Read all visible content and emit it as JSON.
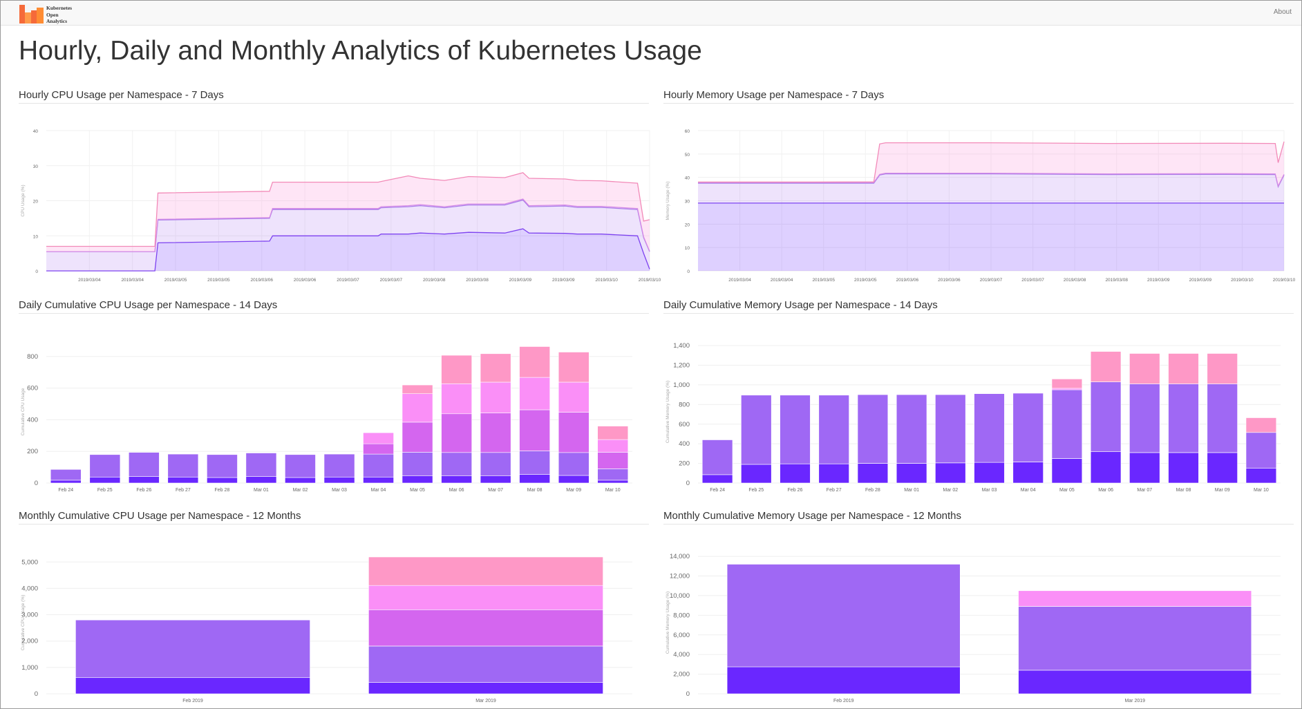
{
  "brand": {
    "line1": "Kubernetes",
    "line2": "Open",
    "line3": "Analytics"
  },
  "nav": {
    "about": "About"
  },
  "page_title": "Hourly, Daily and Monthly Analytics of Kubernetes Usage",
  "palette": [
    "#6a27ff",
    "#9f68f4",
    "#d466ef",
    "#fa8ff7",
    "#fe98c6"
  ],
  "panels": {
    "hourly_cpu": "Hourly CPU Usage per Namespace - 7 Days",
    "hourly_mem": "Hourly Memory Usage per Namespace - 7 Days",
    "daily_cpu": "Daily Cumulative CPU Usage per Namespace - 14 Days",
    "daily_mem": "Daily Cumulative Memory Usage per Namespace - 14 Days",
    "monthly_cpu": "Monthly Cumulative CPU Usage per Namespace - 12 Months",
    "monthly_mem": "Monthly Cumulative Memory Usage per Namespace - 12 Months"
  },
  "chart_data": [
    {
      "id": "hourly_cpu",
      "type": "area",
      "stacked": true,
      "ylabel": "CPU Usage (%)",
      "ylim": [
        0,
        40
      ],
      "yticks": [
        "0",
        "10",
        "20",
        "30",
        "40"
      ],
      "xticks": [
        "2019/03/04",
        "2019/03/04",
        "2019/03/05",
        "2019/03/05",
        "2019/03/06",
        "2019/03/06",
        "2019/03/07",
        "2019/03/07",
        "2019/03/08",
        "2019/03/08",
        "2019/03/09",
        "2019/03/09",
        "2019/03/10",
        "2019/03/10"
      ],
      "x": [
        0,
        0.18,
        0.185,
        0.37,
        0.375,
        0.55,
        0.555,
        0.6,
        0.62,
        0.66,
        0.7,
        0.76,
        0.79,
        0.8,
        0.86,
        0.88,
        0.92,
        0.98,
        0.99,
        1.0
      ],
      "series": [
        {
          "values": [
            0,
            0,
            8,
            8.5,
            10,
            10,
            10.5,
            10.5,
            10.8,
            10.5,
            11,
            10.8,
            12,
            10.8,
            10.7,
            10.5,
            10.5,
            10,
            5,
            0.5
          ]
        },
        {
          "values": [
            5.5,
            5.5,
            6.5,
            6.5,
            7.5,
            7.5,
            7.5,
            7.8,
            7.8,
            7.5,
            7.8,
            8,
            8.2,
            7.5,
            7.8,
            7.6,
            7.6,
            7.5,
            4.5,
            5
          ]
        },
        {
          "values": [
            0,
            0,
            0.2,
            0.2,
            0.3,
            0.3,
            0.3,
            0.3,
            0.3,
            0.3,
            0.3,
            0.3,
            0.3,
            0.3,
            0.3,
            0.3,
            0.3,
            0.3,
            0.2,
            0.1
          ]
        },
        {
          "values": [
            1.5,
            1.5,
            7.5,
            7.5,
            7.5,
            7.5,
            7.2,
            8.5,
            7.5,
            7.5,
            7.8,
            7.5,
            7.5,
            7.8,
            7.4,
            7.4,
            7.3,
            7.2,
            4.5,
            9
          ]
        }
      ]
    },
    {
      "id": "hourly_mem",
      "type": "area",
      "stacked": true,
      "ylabel": "Memory Usage (%)",
      "ylim": [
        0,
        60
      ],
      "yticks": [
        "0",
        "10",
        "20",
        "30",
        "40",
        "50",
        "60"
      ],
      "xticks": [
        "2019/03/04",
        "2019/03/04",
        "2019/03/05",
        "2019/03/05",
        "2019/03/06",
        "2019/03/06",
        "2019/03/07",
        "2019/03/07",
        "2019/03/08",
        "2019/03/08",
        "2019/03/09",
        "2019/03/09",
        "2019/03/10",
        "2019/03/10"
      ],
      "x": [
        0,
        0.2,
        0.3,
        0.31,
        0.32,
        0.5,
        0.7,
        0.9,
        0.985,
        0.99,
        1.0
      ],
      "series": [
        {
          "values": [
            29,
            29,
            29,
            29,
            29,
            29,
            29,
            29,
            29,
            29,
            29
          ]
        },
        {
          "values": [
            8.5,
            8.5,
            8.5,
            12,
            12.5,
            12.5,
            12.2,
            12.3,
            12.2,
            7,
            12
          ]
        },
        {
          "values": [
            0.3,
            0.3,
            0.3,
            0.3,
            0.3,
            0.3,
            0.3,
            0.3,
            0.3,
            0.3,
            0.3
          ]
        },
        {
          "values": [
            0.2,
            0.2,
            0.3,
            13,
            13,
            13,
            13,
            13,
            13,
            10,
            14
          ]
        }
      ]
    },
    {
      "id": "daily_cpu",
      "type": "bar",
      "stacked": true,
      "ylabel": "Cumulative CPU Usage",
      "ylim": [
        0,
        900
      ],
      "yticks": [
        "0",
        "200",
        "400",
        "600",
        "800"
      ],
      "categories": [
        "Feb 24",
        "Feb 25",
        "Feb 26",
        "Feb 27",
        "Feb 28",
        "Mar 01",
        "Mar 02",
        "Mar 03",
        "Mar 04",
        "Mar 05",
        "Mar 06",
        "Mar 07",
        "Mar 08",
        "Mar 09",
        "Mar 10"
      ],
      "series": [
        {
          "values": [
            18,
            38,
            42,
            38,
            35,
            42,
            35,
            38,
            38,
            45,
            45,
            45,
            55,
            48,
            18
          ]
        },
        {
          "values": [
            68,
            142,
            152,
            145,
            145,
            148,
            145,
            145,
            145,
            150,
            148,
            148,
            148,
            145,
            72
          ]
        },
        {
          "values": [
            0,
            0,
            0,
            0,
            0,
            0,
            0,
            0,
            65,
            190,
            245,
            250,
            260,
            255,
            105
          ]
        },
        {
          "values": [
            0,
            0,
            0,
            0,
            0,
            0,
            0,
            0,
            70,
            180,
            190,
            195,
            205,
            190,
            80
          ]
        },
        {
          "values": [
            0,
            0,
            0,
            0,
            0,
            0,
            0,
            0,
            0,
            55,
            180,
            180,
            195,
            190,
            85
          ]
        }
      ]
    },
    {
      "id": "daily_mem",
      "type": "bar",
      "stacked": true,
      "ylabel": "Cumulative Memory Usage (%)",
      "ylim": [
        0,
        1450
      ],
      "yticks": [
        "0",
        "200",
        "400",
        "600",
        "800",
        "1,000",
        "1,200",
        "1,400"
      ],
      "categories": [
        "Feb 24",
        "Feb 25",
        "Feb 26",
        "Feb 27",
        "Feb 28",
        "Mar 01",
        "Mar 02",
        "Mar 03",
        "Mar 04",
        "Mar 05",
        "Mar 06",
        "Mar 07",
        "Mar 08",
        "Mar 09",
        "Mar 10"
      ],
      "series": [
        {
          "values": [
            85,
            190,
            195,
            195,
            200,
            200,
            205,
            210,
            215,
            250,
            320,
            310,
            310,
            310,
            150
          ]
        },
        {
          "values": [
            355,
            705,
            700,
            700,
            700,
            700,
            695,
            700,
            700,
            700,
            710,
            700,
            700,
            700,
            365
          ]
        },
        {
          "values": [
            0,
            0,
            0,
            0,
            0,
            0,
            0,
            0,
            0,
            0,
            0,
            0,
            0,
            0,
            0
          ]
        },
        {
          "values": [
            0,
            0,
            0,
            0,
            0,
            0,
            0,
            0,
            0,
            15,
            0,
            0,
            0,
            0,
            0
          ]
        },
        {
          "values": [
            0,
            0,
            0,
            0,
            0,
            0,
            0,
            0,
            0,
            95,
            310,
            310,
            310,
            310,
            150
          ]
        }
      ]
    },
    {
      "id": "monthly_cpu",
      "type": "bar",
      "stacked": true,
      "ylabel": "Cumulative CPU Usage (%)",
      "ylim": [
        0,
        5400
      ],
      "yticks": [
        "0",
        "1,000",
        "2,000",
        "3,000",
        "4,000",
        "5,000"
      ],
      "categories": [
        "Feb 2019",
        "Mar 2019"
      ],
      "series": [
        {
          "values": [
            620,
            430
          ]
        },
        {
          "values": [
            2180,
            1380
          ]
        },
        {
          "values": [
            0,
            1380
          ]
        },
        {
          "values": [
            0,
            920
          ]
        },
        {
          "values": [
            0,
            1080
          ]
        }
      ]
    },
    {
      "id": "monthly_mem",
      "type": "bar",
      "stacked": true,
      "ylabel": "Cumulative Memory Usage (%)",
      "ylim": [
        0,
        14500
      ],
      "yticks": [
        "0",
        "2,000",
        "4,000",
        "6,000",
        "8,000",
        "10,000",
        "12,000",
        "14,000"
      ],
      "categories": [
        "Feb 2019",
        "Mar 2019"
      ],
      "series": [
        {
          "values": [
            2750,
            2400
          ]
        },
        {
          "values": [
            10450,
            6500
          ]
        },
        {
          "values": [
            0,
            0
          ]
        },
        {
          "values": [
            0,
            1600
          ]
        },
        {
          "values": [
            0,
            0
          ]
        }
      ]
    }
  ]
}
